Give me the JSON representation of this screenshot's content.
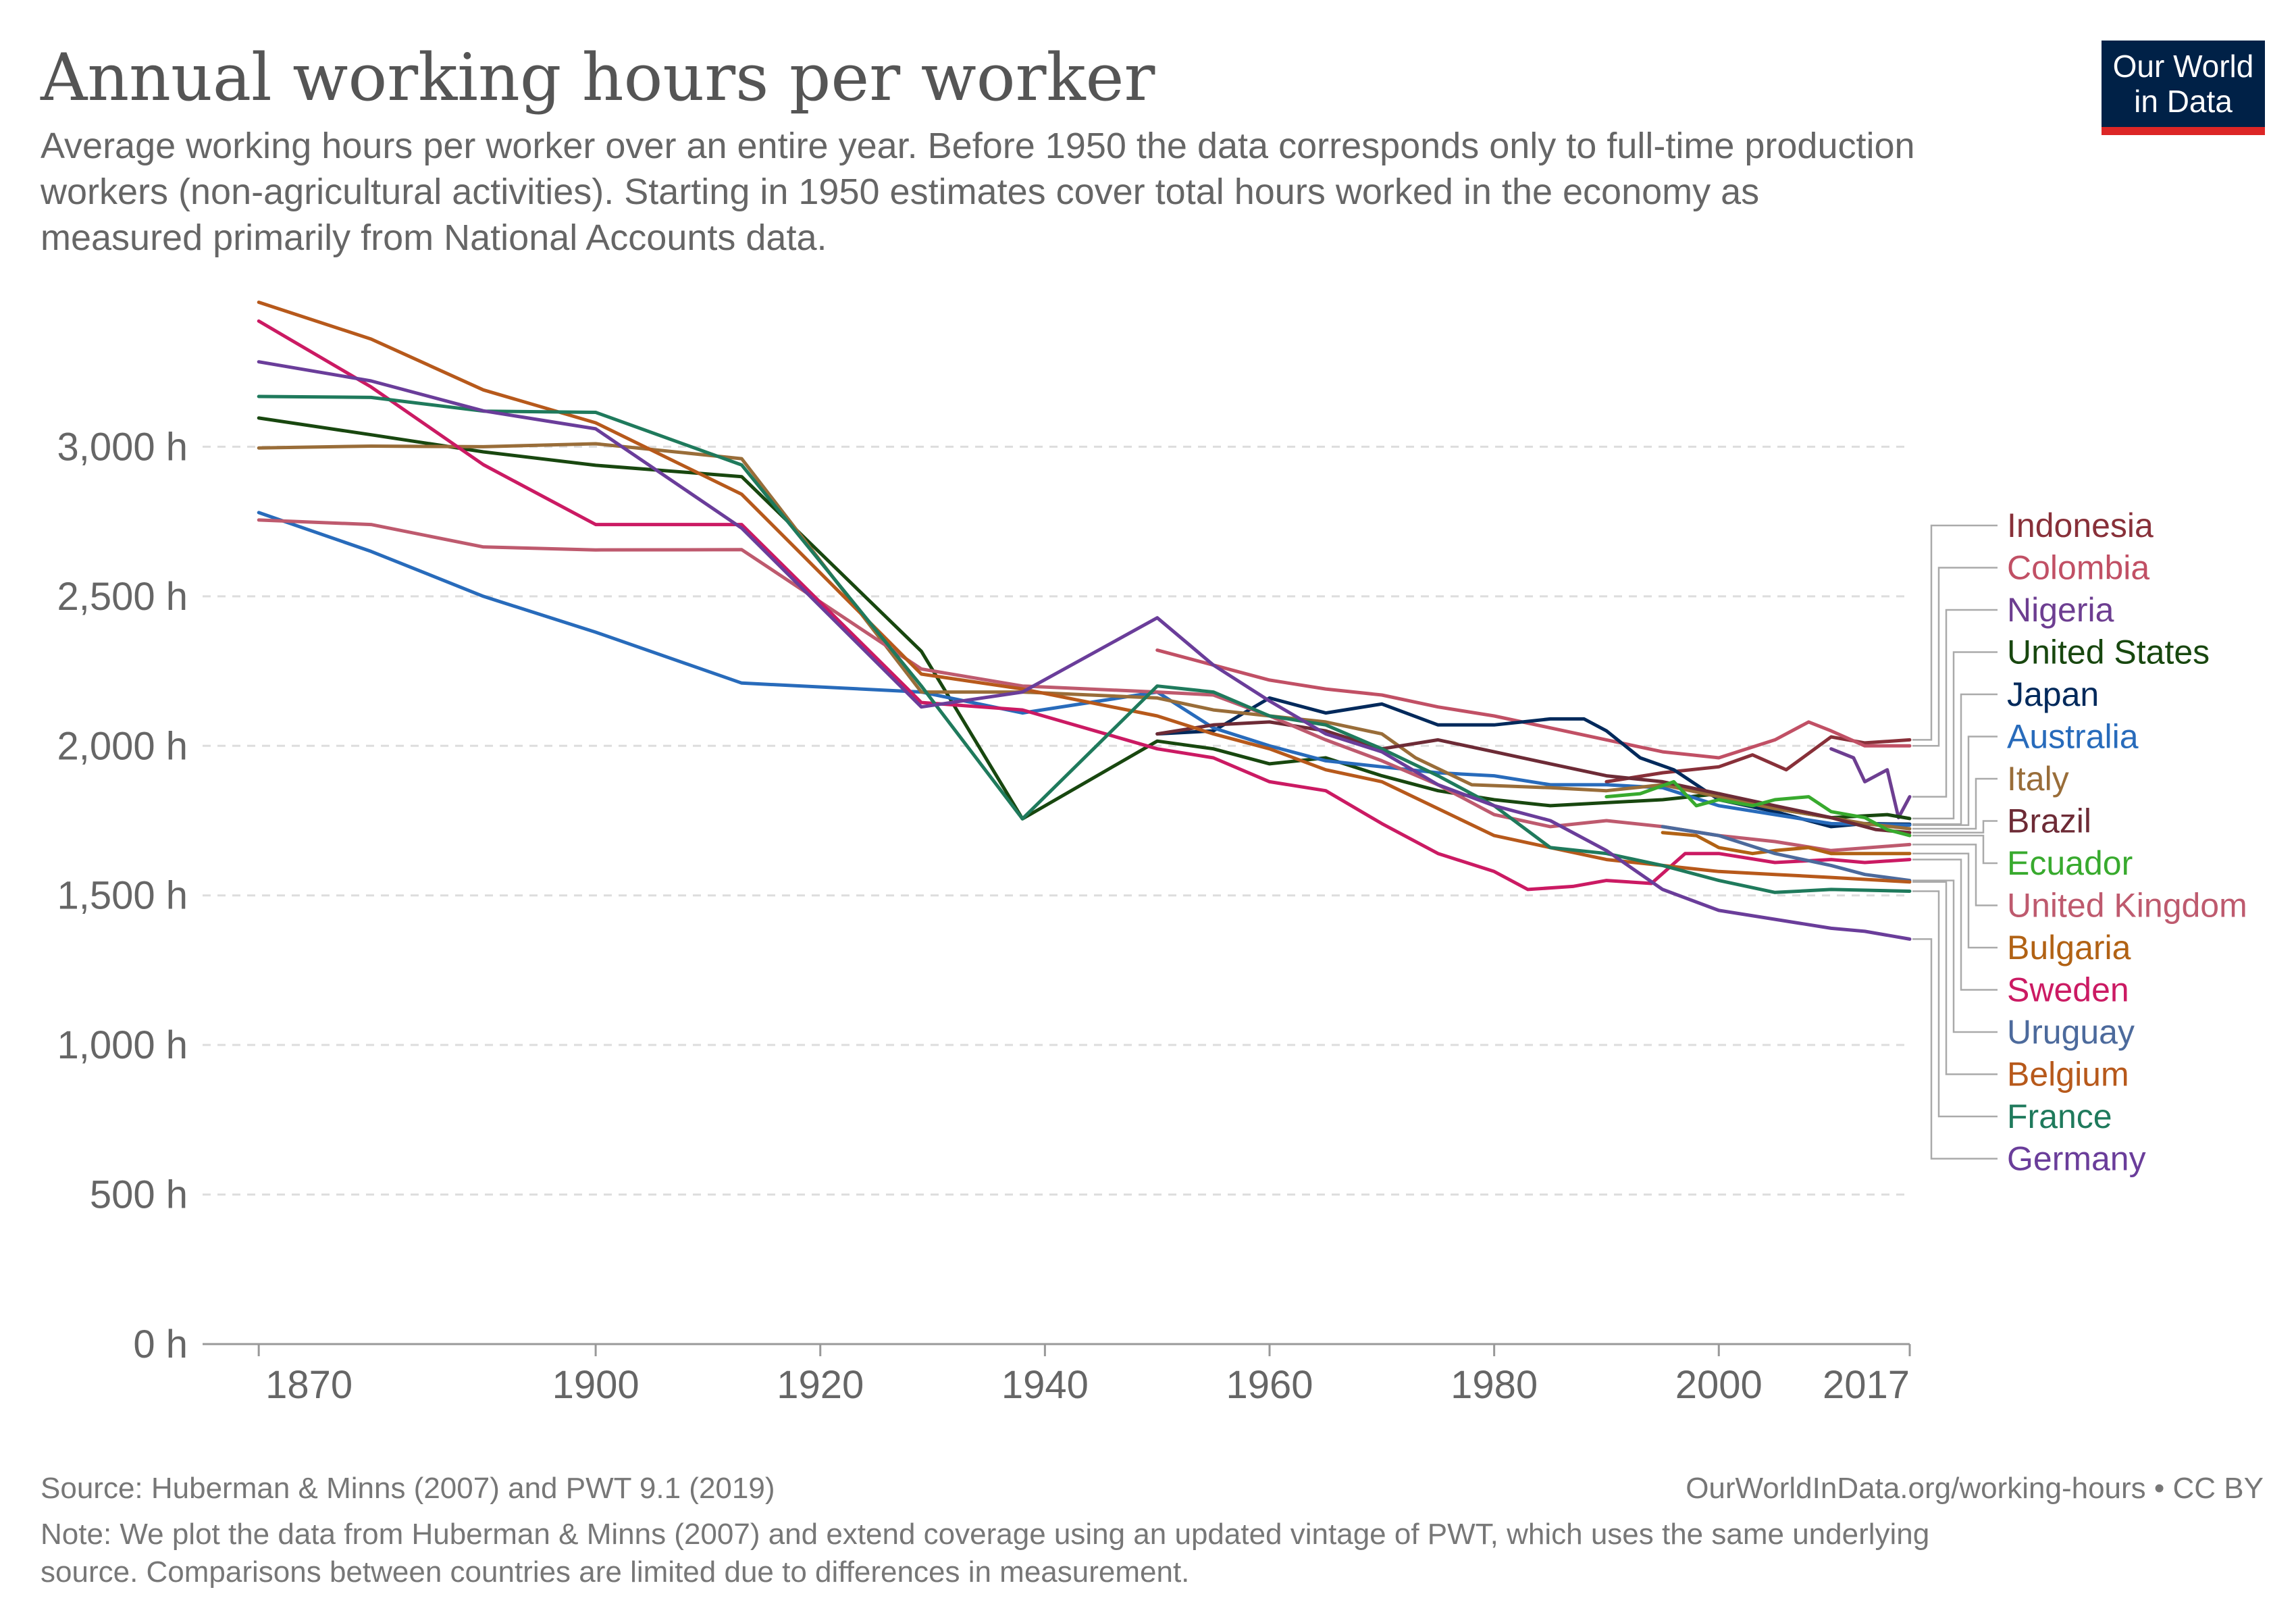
{
  "logo": {
    "line1": "Our World",
    "line2": "in Data",
    "bg": "#002147",
    "accent": "#dc2626"
  },
  "chart_data": {
    "type": "line",
    "title": "Annual working hours per worker",
    "subtitle": [
      "Average working hours per worker over an entire year. Before 1950 the data corresponds only to full-time production",
      "workers (non-agricultural activities). Starting in 1950 estimates cover total hours worked in the economy as",
      "measured primarily from National Accounts data."
    ],
    "xlabel": "",
    "ylabel": "",
    "xlim": [
      1865,
      2017
    ],
    "ylim": [
      0,
      3500
    ],
    "x_ticks": [
      1870,
      1900,
      1920,
      1940,
      1960,
      1980,
      2000,
      2017
    ],
    "y_ticks": [
      0,
      500,
      1000,
      1500,
      2000,
      2500,
      3000
    ],
    "y_tick_labels": [
      "0 h",
      "500 h",
      "1,000 h",
      "1,500 h",
      "2,000 h",
      "2,500 h",
      "3,000 h"
    ],
    "grid": "horizontal-dashed",
    "legend": "right",
    "series": [
      {
        "name": "Indonesia",
        "color": "#883039",
        "points": [
          [
            1990,
            1880
          ],
          [
            1995,
            1910
          ],
          [
            2000,
            1930
          ],
          [
            2003,
            1970
          ],
          [
            2006,
            1920
          ],
          [
            2010,
            2030
          ],
          [
            2013,
            2010
          ],
          [
            2017,
            2020
          ]
        ]
      },
      {
        "name": "Colombia",
        "color": "#C15065",
        "points": [
          [
            1950,
            2320
          ],
          [
            1955,
            2270
          ],
          [
            1960,
            2220
          ],
          [
            1965,
            2190
          ],
          [
            1970,
            2170
          ],
          [
            1975,
            2130
          ],
          [
            1980,
            2100
          ],
          [
            1985,
            2060
          ],
          [
            1990,
            2020
          ],
          [
            1995,
            1980
          ],
          [
            2000,
            1960
          ],
          [
            2005,
            2020
          ],
          [
            2008,
            2080
          ],
          [
            2010,
            2050
          ],
          [
            2013,
            2000
          ],
          [
            2017,
            2000
          ]
        ]
      },
      {
        "name": "Nigeria",
        "color": "#6D3E91",
        "points": [
          [
            2010,
            1990
          ],
          [
            2012,
            1960
          ],
          [
            2013,
            1880
          ],
          [
            2015,
            1920
          ],
          [
            2016,
            1760
          ],
          [
            2017,
            1830
          ]
        ]
      },
      {
        "name": "United States",
        "color": "#18470F",
        "points": [
          [
            1870,
            3096
          ],
          [
            1880,
            3040
          ],
          [
            1890,
            2983
          ],
          [
            1900,
            2938
          ],
          [
            1913,
            2900
          ],
          [
            1929,
            2316
          ],
          [
            1938,
            1756
          ],
          [
            1950,
            2016
          ],
          [
            1955,
            1990
          ],
          [
            1960,
            1940
          ],
          [
            1965,
            1960
          ],
          [
            1970,
            1900
          ],
          [
            1975,
            1850
          ],
          [
            1980,
            1820
          ],
          [
            1985,
            1800
          ],
          [
            1990,
            1810
          ],
          [
            1995,
            1820
          ],
          [
            2000,
            1840
          ],
          [
            2005,
            1790
          ],
          [
            2010,
            1760
          ],
          [
            2015,
            1770
          ],
          [
            2017,
            1757
          ]
        ]
      },
      {
        "name": "Japan",
        "color": "#00295B",
        "points": [
          [
            1950,
            2040
          ],
          [
            1955,
            2050
          ],
          [
            1960,
            2160
          ],
          [
            1965,
            2110
          ],
          [
            1970,
            2140
          ],
          [
            1975,
            2070
          ],
          [
            1980,
            2070
          ],
          [
            1985,
            2090
          ],
          [
            1988,
            2090
          ],
          [
            1990,
            2050
          ],
          [
            1993,
            1960
          ],
          [
            1996,
            1920
          ],
          [
            2000,
            1820
          ],
          [
            2005,
            1780
          ],
          [
            2010,
            1730
          ],
          [
            2013,
            1740
          ],
          [
            2017,
            1738
          ]
        ]
      },
      {
        "name": "Australia",
        "color": "#286BBB",
        "points": [
          [
            1870,
            2780
          ],
          [
            1880,
            2650
          ],
          [
            1890,
            2500
          ],
          [
            1900,
            2380
          ],
          [
            1913,
            2210
          ],
          [
            1929,
            2180
          ],
          [
            1938,
            2110
          ],
          [
            1950,
            2180
          ],
          [
            1955,
            2060
          ],
          [
            1960,
            2000
          ],
          [
            1965,
            1950
          ],
          [
            1970,
            1930
          ],
          [
            1975,
            1910
          ],
          [
            1980,
            1900
          ],
          [
            1985,
            1870
          ],
          [
            1990,
            1870
          ],
          [
            1995,
            1860
          ],
          [
            2000,
            1800
          ],
          [
            2005,
            1770
          ],
          [
            2010,
            1740
          ],
          [
            2017,
            1735
          ]
        ]
      },
      {
        "name": "Italy",
        "color": "#996D39",
        "points": [
          [
            1870,
            2996
          ],
          [
            1880,
            3002
          ],
          [
            1890,
            3000
          ],
          [
            1900,
            3010
          ],
          [
            1913,
            2960
          ],
          [
            1929,
            2180
          ],
          [
            1938,
            2180
          ],
          [
            1950,
            2160
          ],
          [
            1955,
            2120
          ],
          [
            1960,
            2100
          ],
          [
            1965,
            2080
          ],
          [
            1970,
            2040
          ],
          [
            1973,
            1960
          ],
          [
            1978,
            1870
          ],
          [
            1985,
            1860
          ],
          [
            1990,
            1850
          ],
          [
            1995,
            1870
          ],
          [
            2000,
            1830
          ],
          [
            2005,
            1790
          ],
          [
            2010,
            1760
          ],
          [
            2013,
            1740
          ],
          [
            2017,
            1723
          ]
        ]
      },
      {
        "name": "Brazil",
        "color": "#6D2B36",
        "points": [
          [
            1950,
            2040
          ],
          [
            1955,
            2070
          ],
          [
            1960,
            2080
          ],
          [
            1965,
            2050
          ],
          [
            1970,
            1990
          ],
          [
            1975,
            2020
          ],
          [
            1980,
            1980
          ],
          [
            1985,
            1940
          ],
          [
            1990,
            1900
          ],
          [
            1995,
            1880
          ],
          [
            2000,
            1840
          ],
          [
            2005,
            1800
          ],
          [
            2010,
            1760
          ],
          [
            2014,
            1720
          ],
          [
            2017,
            1710
          ]
        ]
      },
      {
        "name": "Ecuador",
        "color": "#38AA2E",
        "points": [
          [
            1990,
            1830
          ],
          [
            1993,
            1840
          ],
          [
            1996,
            1880
          ],
          [
            1998,
            1800
          ],
          [
            2000,
            1820
          ],
          [
            2003,
            1800
          ],
          [
            2005,
            1820
          ],
          [
            2008,
            1830
          ],
          [
            2010,
            1780
          ],
          [
            2013,
            1760
          ],
          [
            2015,
            1720
          ],
          [
            2017,
            1700
          ]
        ]
      },
      {
        "name": "United Kingdom",
        "color": "#BE5A6E",
        "points": [
          [
            1870,
            2755
          ],
          [
            1880,
            2740
          ],
          [
            1890,
            2665
          ],
          [
            1900,
            2655
          ],
          [
            1913,
            2656
          ],
          [
            1929,
            2257
          ],
          [
            1938,
            2200
          ],
          [
            1950,
            2180
          ],
          [
            1955,
            2170
          ],
          [
            1960,
            2100
          ],
          [
            1965,
            2020
          ],
          [
            1970,
            1950
          ],
          [
            1975,
            1870
          ],
          [
            1980,
            1770
          ],
          [
            1985,
            1730
          ],
          [
            1990,
            1750
          ],
          [
            1995,
            1730
          ],
          [
            2000,
            1700
          ],
          [
            2005,
            1680
          ],
          [
            2010,
            1650
          ],
          [
            2017,
            1670
          ]
        ]
      },
      {
        "name": "Bulgaria",
        "color": "#B16214",
        "points": [
          [
            1995,
            1710
          ],
          [
            1998,
            1700
          ],
          [
            2000,
            1660
          ],
          [
            2003,
            1640
          ],
          [
            2005,
            1650
          ],
          [
            2008,
            1660
          ],
          [
            2010,
            1640
          ],
          [
            2013,
            1640
          ],
          [
            2017,
            1640
          ]
        ]
      },
      {
        "name": "Sweden",
        "color": "#CB1A63",
        "points": [
          [
            1870,
            3420
          ],
          [
            1880,
            3200
          ],
          [
            1890,
            2940
          ],
          [
            1900,
            2740
          ],
          [
            1913,
            2740
          ],
          [
            1929,
            2145
          ],
          [
            1938,
            2120
          ],
          [
            1950,
            1990
          ],
          [
            1955,
            1960
          ],
          [
            1960,
            1880
          ],
          [
            1965,
            1850
          ],
          [
            1970,
            1740
          ],
          [
            1975,
            1640
          ],
          [
            1980,
            1580
          ],
          [
            1983,
            1520
          ],
          [
            1987,
            1530
          ],
          [
            1990,
            1550
          ],
          [
            1994,
            1540
          ],
          [
            1997,
            1640
          ],
          [
            2000,
            1640
          ],
          [
            2005,
            1610
          ],
          [
            2010,
            1620
          ],
          [
            2013,
            1610
          ],
          [
            2017,
            1620
          ]
        ]
      },
      {
        "name": "Uruguay",
        "color": "#4C6A9C",
        "points": [
          [
            1995,
            1730
          ],
          [
            2000,
            1700
          ],
          [
            2005,
            1640
          ],
          [
            2010,
            1600
          ],
          [
            2013,
            1570
          ],
          [
            2017,
            1550
          ]
        ]
      },
      {
        "name": "Belgium",
        "color": "#B7591B",
        "points": [
          [
            1870,
            3483
          ],
          [
            1880,
            3360
          ],
          [
            1890,
            3190
          ],
          [
            1900,
            3080
          ],
          [
            1913,
            2841
          ],
          [
            1929,
            2240
          ],
          [
            1938,
            2190
          ],
          [
            1950,
            2100
          ],
          [
            1955,
            2040
          ],
          [
            1960,
            1990
          ],
          [
            1965,
            1920
          ],
          [
            1970,
            1880
          ],
          [
            1975,
            1790
          ],
          [
            1980,
            1700
          ],
          [
            1985,
            1660
          ],
          [
            1990,
            1620
          ],
          [
            1995,
            1600
          ],
          [
            2000,
            1580
          ],
          [
            2005,
            1570
          ],
          [
            2010,
            1560
          ],
          [
            2017,
            1545
          ]
        ]
      },
      {
        "name": "France",
        "color": "#1F7A5C",
        "points": [
          [
            1870,
            3168
          ],
          [
            1880,
            3165
          ],
          [
            1890,
            3119
          ],
          [
            1900,
            3115
          ],
          [
            1913,
            2939
          ],
          [
            1929,
            2200
          ],
          [
            1938,
            1756
          ],
          [
            1950,
            2200
          ],
          [
            1955,
            2180
          ],
          [
            1960,
            2100
          ],
          [
            1965,
            2070
          ],
          [
            1970,
            1990
          ],
          [
            1975,
            1900
          ],
          [
            1980,
            1800
          ],
          [
            1985,
            1660
          ],
          [
            1990,
            1640
          ],
          [
            1995,
            1600
          ],
          [
            2000,
            1550
          ],
          [
            2005,
            1510
          ],
          [
            2010,
            1520
          ],
          [
            2017,
            1514
          ]
        ]
      },
      {
        "name": "Germany",
        "color": "#6A3D9A",
        "points": [
          [
            1870,
            3284
          ],
          [
            1880,
            3220
          ],
          [
            1890,
            3120
          ],
          [
            1900,
            3060
          ],
          [
            1913,
            2728
          ],
          [
            1929,
            2130
          ],
          [
            1938,
            2180
          ],
          [
            1950,
            2428
          ],
          [
            1955,
            2270
          ],
          [
            1960,
            2150
          ],
          [
            1965,
            2040
          ],
          [
            1970,
            1980
          ],
          [
            1975,
            1870
          ],
          [
            1980,
            1800
          ],
          [
            1985,
            1750
          ],
          [
            1990,
            1650
          ],
          [
            1995,
            1520
          ],
          [
            2000,
            1450
          ],
          [
            2005,
            1420
          ],
          [
            2010,
            1390
          ],
          [
            2013,
            1380
          ],
          [
            2017,
            1354
          ]
        ]
      }
    ]
  },
  "footer": {
    "source": "Source: Huberman & Minns (2007) and PWT 9.1 (2019)",
    "url": "OurWorldInData.org/working-hours • CC BY",
    "note1": "Note: We plot the data from Huberman & Minns (2007) and extend coverage using an updated vintage of PWT, which uses the same underlying",
    "note2": "source. Comparisons between countries are limited due to differences in measurement."
  }
}
